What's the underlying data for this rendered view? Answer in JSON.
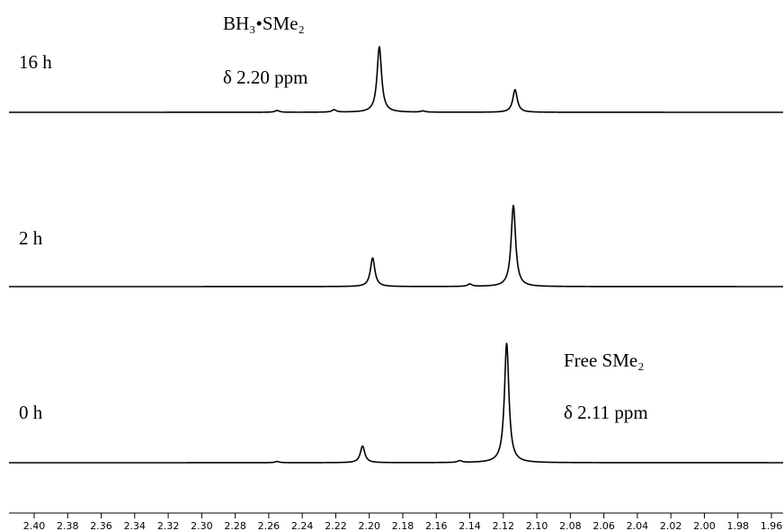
{
  "chart_data": {
    "type": "line",
    "title": "",
    "xlabel": "",
    "ylabel": "",
    "xlim": [
      2.41,
      1.955
    ],
    "x_reversed": true,
    "grid": false,
    "x_ticks": [
      "2.40",
      "2.38",
      "2.36",
      "2.34",
      "2.32",
      "2.30",
      "2.28",
      "2.26",
      "2.24",
      "2.22",
      "2.20",
      "2.18",
      "2.16",
      "2.14",
      "2.12",
      "2.10",
      "2.08",
      "2.06",
      "2.04",
      "2.02",
      "2.00",
      "1.98",
      "1.96"
    ],
    "series": [
      {
        "name": "16 h",
        "peaks": [
          {
            "x": 2.194,
            "height": 0.55
          },
          {
            "x": 2.113,
            "height": 0.19
          }
        ],
        "small_bumps": [
          {
            "x": 2.255,
            "height": 0.015
          },
          {
            "x": 2.221,
            "height": 0.02
          },
          {
            "x": 2.168,
            "height": 0.01
          }
        ]
      },
      {
        "name": "2 h",
        "peaks": [
          {
            "x": 2.198,
            "height": 0.24
          },
          {
            "x": 2.114,
            "height": 0.68
          }
        ],
        "small_bumps": [
          {
            "x": 2.14,
            "height": 0.02
          }
        ]
      },
      {
        "name": "0 h",
        "peaks": [
          {
            "x": 2.204,
            "height": 0.14
          },
          {
            "x": 2.118,
            "height": 1.0
          }
        ],
        "small_bumps": [
          {
            "x": 2.146,
            "height": 0.015
          },
          {
            "x": 2.255,
            "height": 0.01
          }
        ]
      }
    ],
    "annotations": {
      "bh3_label": "BH₃•SMe₂",
      "bh3_shift": "δ 2.20 ppm",
      "free_label": "Free SMe₂",
      "free_shift": "δ 2.11 ppm"
    }
  }
}
